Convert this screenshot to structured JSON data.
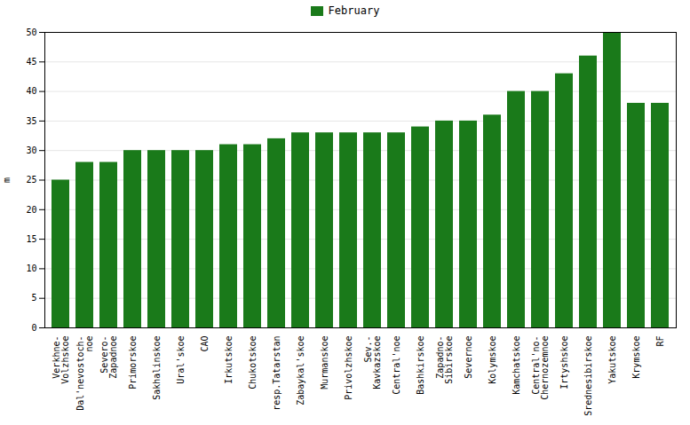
{
  "chart_data": {
    "type": "bar",
    "categories": [
      "Verkhne-\nVolzhskoe",
      "Dal'nevostoch-\nnoe",
      "Severo-\nZapadnoe",
      "Primorskoe",
      "Sakhalinskoe",
      "Ural'skoe",
      "CAO",
      "Irkutskoe",
      "Chukotskoe",
      "resp.Tatarstan",
      "Zabaykal'skoe",
      "Murmanskoe",
      "Privolzhskoe",
      "Sev.-\nKavkazskoe",
      "Central'noe",
      "Bashkirskoe",
      "Zapadno-\nSibirskoe",
      "Severnoe",
      "Kolymskoe",
      "Kamchatskoe",
      "Central'no-\nChernozemnoe",
      "Irtyshskoe",
      "Srednesibirskoe",
      "Yakutskoe",
      "Krymskoe",
      "RF"
    ],
    "series": [
      {
        "name": "February",
        "color": "#1a7a1a",
        "values": [
          25,
          28,
          28,
          30,
          30,
          30,
          30,
          31,
          31,
          32,
          33,
          33,
          33,
          33,
          33,
          34,
          35,
          35,
          36,
          40,
          40,
          43,
          46,
          50,
          38,
          38
        ]
      }
    ],
    "ylabel": "m",
    "ylim": [
      0,
      50
    ],
    "yticks": [
      0,
      5,
      10,
      15,
      20,
      25,
      30,
      35,
      40,
      45,
      50
    ],
    "grid": true,
    "legend": "top"
  }
}
